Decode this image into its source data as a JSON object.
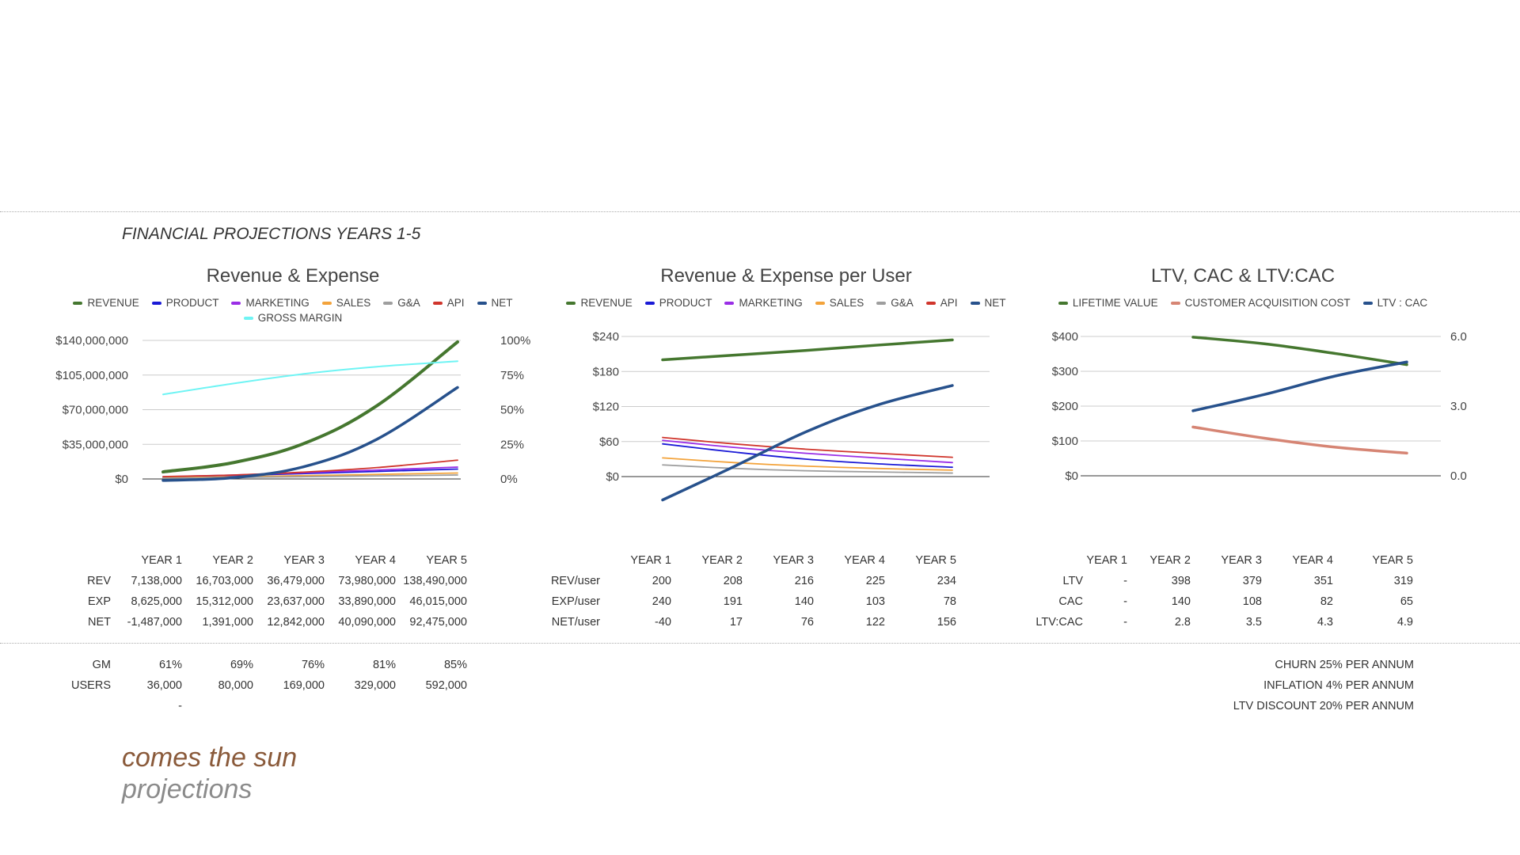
{
  "page_title": "FINANCIAL PROJECTIONS YEARS 1-5",
  "brand": {
    "line1": "comes the sun",
    "line2": "projections"
  },
  "years": [
    "YEAR 1",
    "YEAR 2",
    "YEAR 3",
    "YEAR 4",
    "YEAR  5"
  ],
  "colors": {
    "revenue": "#45772f",
    "product": "#1a1ad6",
    "marketing": "#9a2ee6",
    "sales": "#f3a33b",
    "ga": "#9e9e9e",
    "api": "#d0352c",
    "net": "#27518c",
    "gross_margin": "#6ff4f4",
    "ltv": "#45772f",
    "cac": "#d68574",
    "ratio": "#27518c"
  },
  "chart_data": [
    {
      "type": "line",
      "title": "Revenue & Expense",
      "categories": [
        "YEAR 1",
        "YEAR 2",
        "YEAR 3",
        "YEAR 4",
        "YEAR  5"
      ],
      "y_ticks": [
        "$0",
        "$35,000,000",
        "$70,000,000",
        "$105,000,000",
        "$140,000,000"
      ],
      "y2_ticks": [
        "0%",
        "25%",
        "50%",
        "75%",
        "100%"
      ],
      "ylim": [
        0,
        140000000
      ],
      "y2lim": [
        0,
        100
      ],
      "legend": "top",
      "grid": true,
      "series": [
        {
          "name": "REVENUE",
          "axis": "left",
          "values": [
            7138000,
            16703000,
            36479000,
            73980000,
            138490000
          ]
        },
        {
          "name": "PRODUCT",
          "axis": "left",
          "values": [
            2000000,
            3600000,
            5500000,
            7600000,
            10000000
          ]
        },
        {
          "name": "MARKETING",
          "axis": "left",
          "values": [
            2200000,
            4000000,
            6400000,
            9000000,
            12000000
          ]
        },
        {
          "name": "SALES",
          "axis": "left",
          "values": [
            1200000,
            2200000,
            3400000,
            4600000,
            6000000
          ]
        },
        {
          "name": "G&A",
          "axis": "left",
          "values": [
            800000,
            1500000,
            2300000,
            3100000,
            4000000
          ]
        },
        {
          "name": "API",
          "axis": "left",
          "values": [
            2400000,
            4000000,
            7000000,
            11500000,
            19000000
          ]
        },
        {
          "name": "NET",
          "axis": "left",
          "values": [
            -1487000,
            1391000,
            12842000,
            40090000,
            92475000
          ]
        },
        {
          "name": "GROSS MARGIN",
          "axis": "right",
          "values": [
            61,
            69,
            76,
            81,
            85
          ]
        }
      ]
    },
    {
      "type": "line",
      "title": "Revenue & Expense per User",
      "categories": [
        "YEAR 1",
        "YEAR 2",
        "YEAR 3",
        "YEAR 4",
        "YEAR  5"
      ],
      "y_ticks": [
        "$0",
        "$60",
        "$120",
        "$180",
        "$240"
      ],
      "ylim": [
        0,
        240
      ],
      "legend": "top",
      "grid": true,
      "series": [
        {
          "name": "REVENUE",
          "values": [
            200,
            208,
            216,
            225,
            234
          ]
        },
        {
          "name": "PRODUCT",
          "values": [
            56,
            42,
            30,
            22,
            16
          ]
        },
        {
          "name": "MARKETING",
          "values": [
            62,
            50,
            40,
            32,
            24
          ]
        },
        {
          "name": "SALES",
          "values": [
            32,
            24,
            18,
            14,
            11
          ]
        },
        {
          "name": "G&A",
          "values": [
            20,
            14,
            10,
            8,
            6
          ]
        },
        {
          "name": "API",
          "values": [
            67,
            56,
            47,
            40,
            33
          ]
        },
        {
          "name": "NET",
          "values": [
            -40,
            17,
            76,
            122,
            156
          ]
        }
      ]
    },
    {
      "type": "line",
      "title": "LTV, CAC & LTV:CAC",
      "categories": [
        "YEAR 1",
        "YEAR 2",
        "YEAR 3",
        "YEAR 4",
        "YEAR  5"
      ],
      "y_ticks": [
        "$0",
        "$100",
        "$200",
        "$300",
        "$400"
      ],
      "y2_ticks": [
        "0.0",
        "3.0",
        "6.0"
      ],
      "ylim": [
        0,
        400
      ],
      "y2lim": [
        0,
        6
      ],
      "legend": "top",
      "grid": true,
      "series": [
        {
          "name": "LIFETIME VALUE",
          "axis": "left",
          "values": [
            null,
            398,
            379,
            351,
            319
          ]
        },
        {
          "name": "CUSTOMER ACQUISITION COST",
          "axis": "left",
          "values": [
            null,
            140,
            108,
            82,
            65
          ]
        },
        {
          "name": "LTV : CAC",
          "axis": "right",
          "values": [
            null,
            2.8,
            3.5,
            4.3,
            4.9
          ]
        }
      ]
    }
  ],
  "tables": {
    "t1": {
      "rows": [
        {
          "label": "REV",
          "values": [
            "7,138,000",
            "16,703,000",
            "36,479,000",
            "73,980,000",
            "138,490,000"
          ]
        },
        {
          "label": "EXP",
          "values": [
            "8,625,000",
            "15,312,000",
            "23,637,000",
            "33,890,000",
            "46,015,000"
          ]
        },
        {
          "label": "NET",
          "values": [
            "-1,487,000",
            "1,391,000",
            "12,842,000",
            "40,090,000",
            "92,475,000"
          ]
        }
      ],
      "lower_rows": [
        {
          "label": "GM",
          "values": [
            "61%",
            "69%",
            "76%",
            "81%",
            "85%"
          ]
        },
        {
          "label": "USERS",
          "values": [
            "36,000",
            "80,000",
            "169,000",
            "329,000",
            "592,000"
          ]
        },
        {
          "label": "",
          "values": [
            "-",
            "",
            "",
            "",
            ""
          ]
        }
      ]
    },
    "t2": {
      "rows": [
        {
          "label": "REV/user",
          "values": [
            "200",
            "208",
            "216",
            "225",
            "234"
          ]
        },
        {
          "label": "EXP/user",
          "values": [
            "240",
            "191",
            "140",
            "103",
            "78"
          ]
        },
        {
          "label": "NET/user",
          "values": [
            "-40",
            "17",
            "76",
            "122",
            "156"
          ]
        }
      ]
    },
    "t3": {
      "rows": [
        {
          "label": "LTV",
          "values": [
            "-",
            "398",
            "379",
            "351",
            "319"
          ]
        },
        {
          "label": "CAC",
          "values": [
            "-",
            "140",
            "108",
            "82",
            "65"
          ]
        },
        {
          "label": "LTV:CAC",
          "values": [
            "-",
            "2.8",
            "3.5",
            "4.3",
            "4.9"
          ]
        }
      ]
    }
  },
  "assumptions": [
    "CHURN 25% PER ANNUM",
    "INFLATION 4% PER ANNUM",
    "LTV DISCOUNT 20% PER ANNUM"
  ]
}
